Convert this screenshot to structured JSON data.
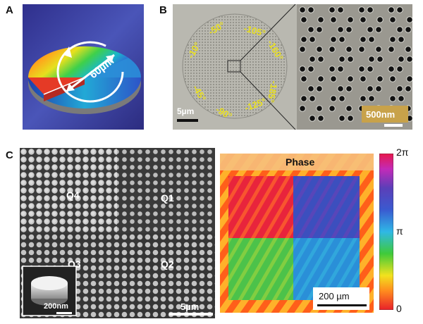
{
  "panel_labels": {
    "a": "A",
    "b": "B",
    "c": "C"
  },
  "panel_a": {
    "dimension_label": "60µm"
  },
  "panel_b": {
    "angles": [
      "-10°",
      "-50°",
      "-105°",
      "-160°",
      "-185°",
      "-125°",
      "-90°",
      "-45°"
    ],
    "scale_left": "5µm",
    "scale_right": "500nm"
  },
  "panel_c": {
    "quadrants": [
      "Q4",
      "Q1",
      "Q3",
      "Q2"
    ],
    "inset_scale": "200nm",
    "scale": "5µm",
    "phase_title": "Phase",
    "phase_scale": "200 µm",
    "colorbar": {
      "top": "2π",
      "mid": "π",
      "bottom": "0"
    }
  }
}
